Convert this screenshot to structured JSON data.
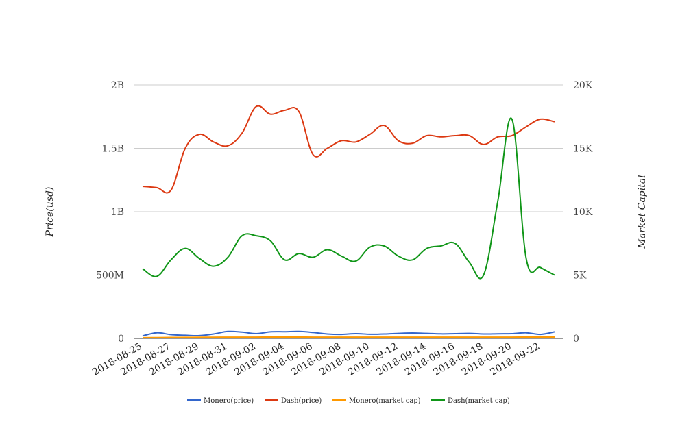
{
  "chart_data": {
    "type": "line",
    "title": "",
    "ylabel": "Price(usd)",
    "y2label": "Market Capital",
    "ylim": [
      0,
      2000000000
    ],
    "y2lim": [
      0,
      20000
    ],
    "y_ticks": [
      {
        "value": 0,
        "label": "0"
      },
      {
        "value": 500000000,
        "label": "500M"
      },
      {
        "value": 1000000000,
        "label": "1B"
      },
      {
        "value": 1500000000,
        "label": "1.5B"
      },
      {
        "value": 2000000000,
        "label": "2B"
      }
    ],
    "y2_ticks": [
      {
        "value": 0,
        "label": "0"
      },
      {
        "value": 5000,
        "label": "5K"
      },
      {
        "value": 10000,
        "label": "10K"
      },
      {
        "value": 15000,
        "label": "15K"
      },
      {
        "value": 20000,
        "label": "20K"
      }
    ],
    "x": [
      "2018-08-25",
      "2018-08-26",
      "2018-08-27",
      "2018-08-28",
      "2018-08-29",
      "2018-08-30",
      "2018-08-31",
      "2018-09-01",
      "2018-09-02",
      "2018-09-03",
      "2018-09-04",
      "2018-09-05",
      "2018-09-06",
      "2018-09-07",
      "2018-09-08",
      "2018-09-09",
      "2018-09-10",
      "2018-09-11",
      "2018-09-12",
      "2018-09-13",
      "2018-09-14",
      "2018-09-15",
      "2018-09-16",
      "2018-09-17",
      "2018-09-18",
      "2018-09-19",
      "2018-09-20",
      "2018-09-21",
      "2018-09-22",
      "2018-09-23"
    ],
    "x_tick_labels": [
      "2018-08-25",
      "2018-08-27",
      "2018-08-29",
      "2018-08-31",
      "2018-09-02",
      "2018-09-04",
      "2018-09-06",
      "2018-09-08",
      "2018-09-10",
      "2018-09-12",
      "2018-09-14",
      "2018-09-16",
      "2018-09-18",
      "2018-09-20",
      "2018-09-22"
    ],
    "grid": true,
    "legend_position": "bottom",
    "series": [
      {
        "name": "Monero(price)",
        "axis": "left",
        "color": "#3366cc",
        "values": [
          20000000,
          45000000,
          30000000,
          25000000,
          22000000,
          35000000,
          55000000,
          50000000,
          38000000,
          52000000,
          53000000,
          55000000,
          47000000,
          35000000,
          32000000,
          38000000,
          33000000,
          35000000,
          40000000,
          43000000,
          40000000,
          36000000,
          38000000,
          40000000,
          35000000,
          37000000,
          38000000,
          45000000,
          32000000,
          52000000
        ]
      },
      {
        "name": "Dash(price)",
        "axis": "left",
        "color": "#dc3912",
        "values": [
          1200000000,
          1190000000,
          1170000000,
          1500000000,
          1610000000,
          1550000000,
          1520000000,
          1620000000,
          1830000000,
          1770000000,
          1800000000,
          1790000000,
          1450000000,
          1500000000,
          1560000000,
          1550000000,
          1610000000,
          1680000000,
          1560000000,
          1540000000,
          1600000000,
          1590000000,
          1600000000,
          1600000000,
          1530000000,
          1590000000,
          1600000000,
          1670000000,
          1730000000,
          1710000000
        ]
      },
      {
        "name": "Monero(market cap)",
        "axis": "right",
        "color": "#ff9900",
        "values": [
          60,
          70,
          80,
          85,
          90,
          95,
          100,
          100,
          105,
          110,
          110,
          110,
          105,
          100,
          100,
          100,
          100,
          100,
          100,
          100,
          100,
          100,
          100,
          100,
          100,
          100,
          105,
          110,
          110,
          110
        ]
      },
      {
        "name": "Dash(market cap)",
        "axis": "right",
        "color": "#109618",
        "values": [
          5500,
          4900,
          6200,
          7100,
          6300,
          5700,
          6400,
          8100,
          8100,
          7700,
          6200,
          6700,
          6400,
          7000,
          6500,
          6100,
          7200,
          7300,
          6500,
          6200,
          7100,
          7300,
          7500,
          6000,
          5000,
          10800,
          17300,
          6300,
          5600,
          5000
        ]
      }
    ]
  }
}
